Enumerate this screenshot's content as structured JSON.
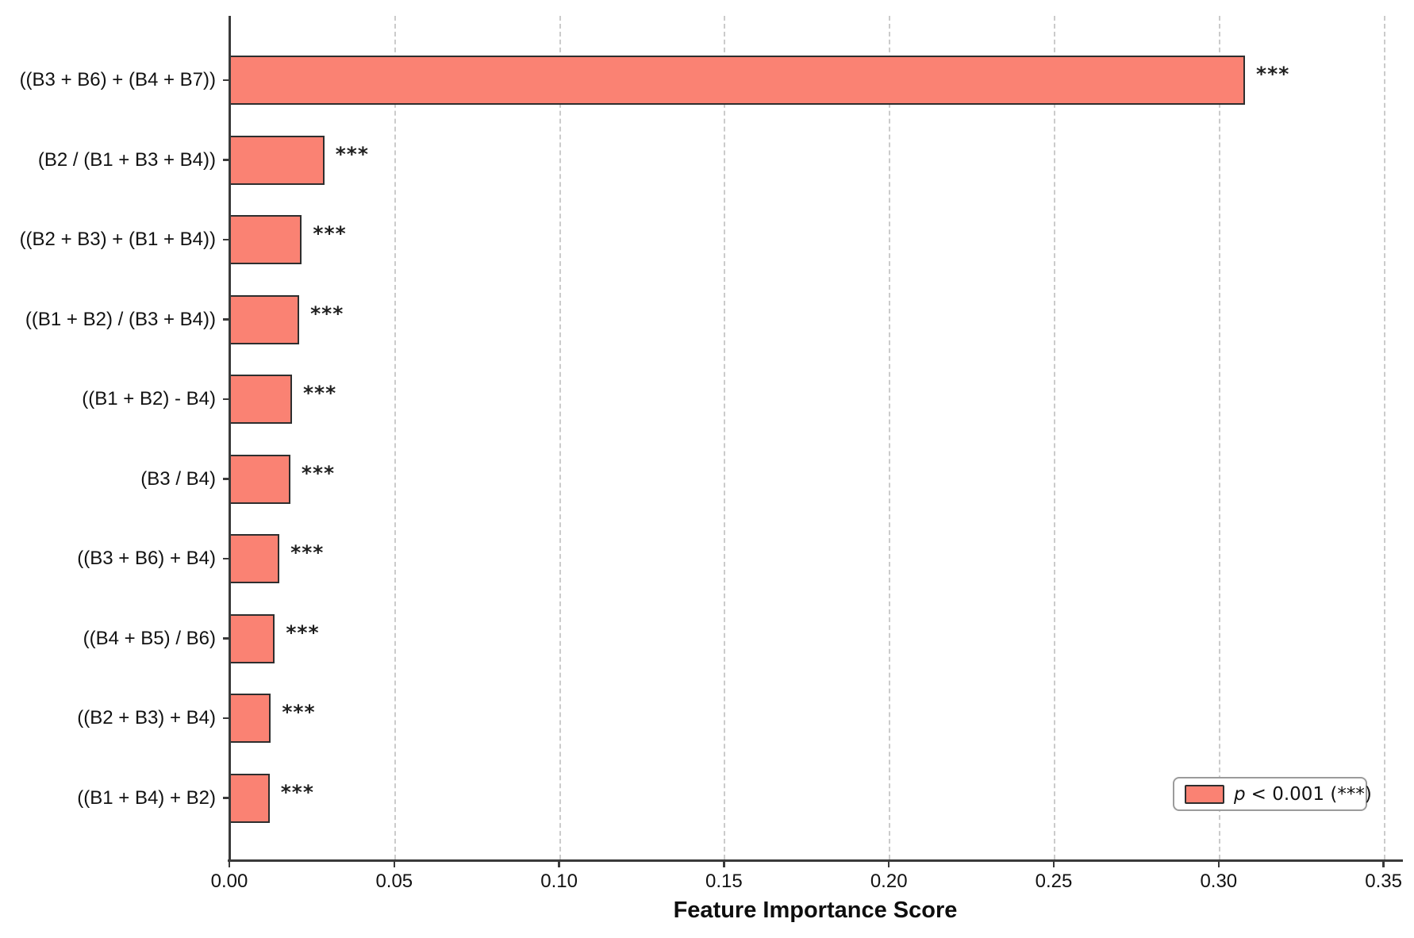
{
  "chart_data": {
    "type": "bar",
    "orientation": "horizontal",
    "title": "",
    "xlabel": "Feature Importance Score",
    "ylabel": "",
    "xlim": [
      0,
      0.35
    ],
    "xtick_labels": [
      "0.00",
      "0.05",
      "0.10",
      "0.15",
      "0.20",
      "0.25",
      "0.30",
      "0.35"
    ],
    "grid": "vertical-dashed",
    "categories": [
      "((B3 + B6) + (B4 + B7))",
      "(B2 / (B1 + B3 + B4))",
      "((B2 + B3) + (B1 + B4))",
      "((B1 + B2) / (B3 + B4))",
      "((B1 + B2) - B4)",
      "(B3 / B4)",
      "((B3 + B6) + B4)",
      "((B4 + B5) / B6)",
      "((B2 + B3) + B4)",
      "((B1 + B4) + B2)"
    ],
    "values": [
      0.308,
      0.0288,
      0.022,
      0.0212,
      0.019,
      0.0185,
      0.0152,
      0.0138,
      0.0126,
      0.0122
    ],
    "significance": [
      "***",
      "***",
      "***",
      "***",
      "***",
      "***",
      "***",
      "***",
      "***",
      "***"
    ],
    "legend": {
      "position": "lower-right",
      "label_p": "p",
      "label_rest": "< 0.001 (***)"
    },
    "colors": {
      "bar_fill": "#FA8273",
      "bar_edge": "#2E2E2E",
      "grid": "#CBCBCB",
      "axis": "#3A3A3A",
      "legend_border": "#9B9B9B"
    }
  }
}
